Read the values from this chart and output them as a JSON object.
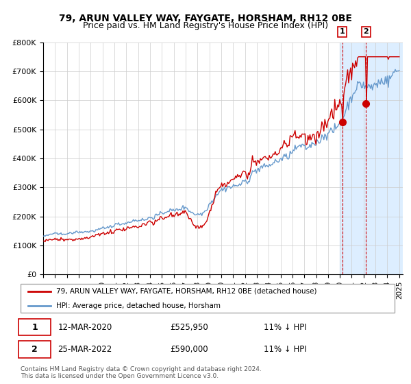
{
  "title1": "79, ARUN VALLEY WAY, FAYGATE, HORSHAM, RH12 0BE",
  "title2": "Price paid vs. HM Land Registry's House Price Index (HPI)",
  "legend_line1": "79, ARUN VALLEY WAY, FAYGATE, HORSHAM, RH12 0BE (detached house)",
  "legend_line2": "HPI: Average price, detached house, Horsham",
  "annotation1_date": "12-MAR-2020",
  "annotation1_price": "£525,950",
  "annotation1_hpi": "11% ↓ HPI",
  "annotation2_date": "25-MAR-2022",
  "annotation2_price": "£590,000",
  "annotation2_hpi": "11% ↓ HPI",
  "footer": "Contains HM Land Registry data © Crown copyright and database right 2024.\nThis data is licensed under the Open Government Licence v3.0.",
  "red_color": "#cc0000",
  "blue_color": "#6699cc",
  "highlight_color": "#ddeeff",
  "ylim": [
    0,
    800000
  ],
  "yticks": [
    0,
    100000,
    200000,
    300000,
    400000,
    500000,
    600000,
    700000,
    800000
  ],
  "ytick_labels": [
    "£0",
    "£100K",
    "£200K",
    "£300K",
    "£400K",
    "£500K",
    "£600K",
    "£700K",
    "£800K"
  ],
  "start_year": 1995,
  "end_year": 2025,
  "t1_year": 2020.2,
  "t2_year": 2022.2,
  "t1_price": 525950,
  "t2_price": 590000
}
